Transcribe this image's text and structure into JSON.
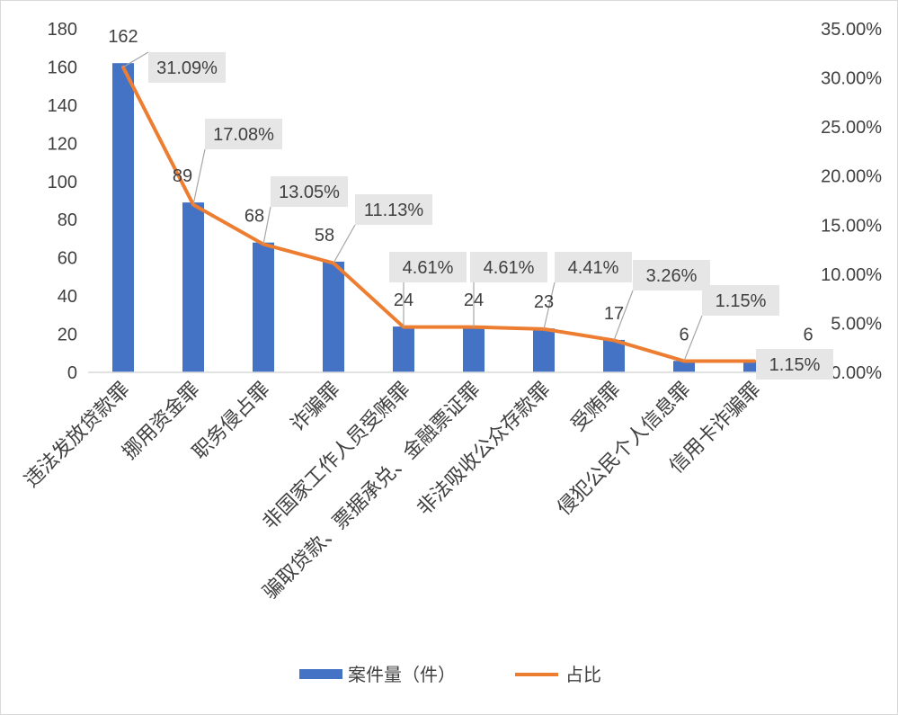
{
  "chart_data": {
    "type": "bar",
    "title": "",
    "categories": [
      "违法发放贷款罪",
      "挪用资金罪",
      "职务侵占罪",
      "诈骗罪",
      "非国家工作人员受贿罪",
      "骗取贷款、票据承兑、金融票证罪",
      "非法吸收公众存款罪",
      "受贿罪",
      "侵犯公民个人信息罪",
      "信用卡诈骗罪"
    ],
    "series": [
      {
        "name": "案件量（件）",
        "type": "bar",
        "axis": "left",
        "color": "#4472C4",
        "values": [
          162,
          89,
          68,
          58,
          24,
          24,
          23,
          17,
          6,
          6
        ],
        "labels": [
          "162",
          "89",
          "68",
          "58",
          "24",
          "24",
          "23",
          "17",
          "6",
          "6"
        ]
      },
      {
        "name": "占比",
        "type": "line",
        "axis": "right",
        "color": "#ED7D31",
        "values": [
          31.09,
          17.08,
          13.05,
          11.13,
          4.61,
          4.61,
          4.41,
          3.26,
          1.15,
          1.15
        ],
        "labels": [
          "31.09%",
          "17.08%",
          "13.05%",
          "11.13%",
          "4.61%",
          "4.61%",
          "4.41%",
          "3.26%",
          "1.15%",
          "1.15%"
        ]
      }
    ],
    "y_left": {
      "min": 0,
      "max": 180,
      "step": 20,
      "ticks": [
        "0",
        "20",
        "40",
        "60",
        "80",
        "100",
        "120",
        "140",
        "160",
        "180"
      ]
    },
    "y_right": {
      "min": 0,
      "max": 35,
      "step": 5,
      "ticks": [
        "0.00%",
        "5.00%",
        "10.00%",
        "15.00%",
        "20.00%",
        "25.00%",
        "30.00%",
        "35.00%"
      ]
    },
    "grid": false,
    "legend_position": "bottom",
    "label_box_color": "#e6e6e6",
    "leader_line_color": "#a6a6a6",
    "axis_color": "#d9d9d9"
  }
}
